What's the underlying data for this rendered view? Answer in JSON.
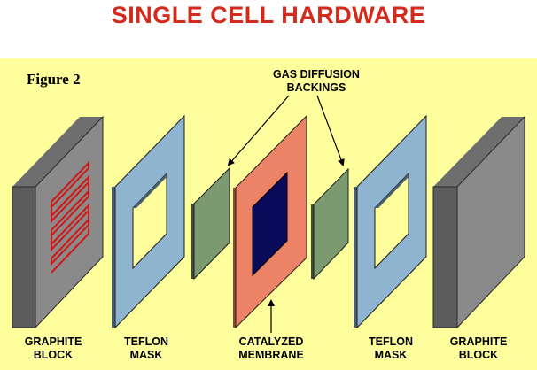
{
  "title": "SINGLE CELL HARDWARE",
  "figure_label": "Figure 2",
  "callouts": {
    "gas_diffusion": [
      "GAS DIFFUSION",
      "BACKINGS"
    ]
  },
  "components": [
    {
      "id": "graphite-block-left",
      "lines": [
        "GRAPHITE",
        "BLOCK"
      ]
    },
    {
      "id": "teflon-mask-left",
      "lines": [
        "TEFLON",
        "MASK"
      ]
    },
    {
      "id": "catalyzed-membrane",
      "lines": [
        "CATALYZED",
        "MEMBRANE"
      ]
    },
    {
      "id": "teflon-mask-right",
      "lines": [
        "TEFLON",
        "MASK"
      ]
    },
    {
      "id": "graphite-block-right",
      "lines": [
        "GRAPHITE",
        "BLOCK"
      ]
    }
  ],
  "colors": {
    "title": "#d42a1c",
    "background": "#fefe9c",
    "graphite_front": "#5c5c5c",
    "graphite_face": "#8a8a8a",
    "graphite_top": "#6e6e6e",
    "teflon": "#8fb4cf",
    "gdl": "#7b9a70",
    "membrane": "#ec8366",
    "catalyst": "#0a0a5a",
    "flow_channel": "#d01818"
  }
}
